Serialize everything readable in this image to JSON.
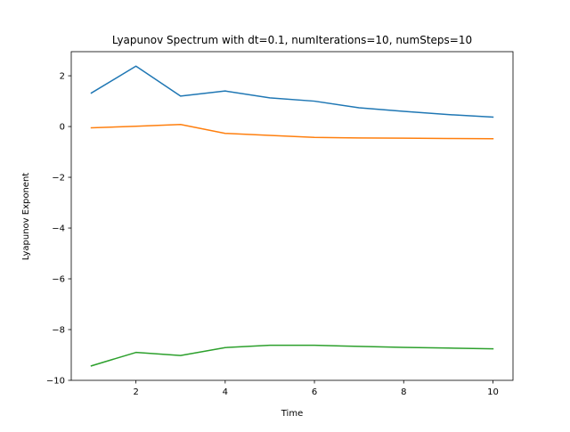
{
  "chart_data": {
    "type": "line",
    "title": "Lyapunov Spectrum with  dt=0.1, numIterations=10, numSteps=10",
    "xlabel": "Time",
    "ylabel": "Lyapunov Exponent",
    "xlim": [
      0.55,
      10.45
    ],
    "ylim": [
      -10,
      2.95
    ],
    "xticks": [
      2,
      4,
      6,
      8,
      10
    ],
    "yticks": [
      -10,
      -8,
      -6,
      -4,
      -2,
      0,
      2
    ],
    "xtick_labels": [
      "2",
      "4",
      "6",
      "8",
      "10"
    ],
    "ytick_labels": [
      "−10",
      "−8",
      "−6",
      "−4",
      "−2",
      "0",
      "2"
    ],
    "grid": false,
    "legend": "none",
    "x": [
      1,
      2,
      3,
      4,
      5,
      6,
      7,
      8,
      9,
      10
    ],
    "series": [
      {
        "color": "#1f77b4",
        "values": [
          1.32,
          2.38,
          1.2,
          1.4,
          1.13,
          1.0,
          0.74,
          0.6,
          0.47,
          0.37
        ]
      },
      {
        "color": "#ff7f0e",
        "values": [
          -0.05,
          0.01,
          0.08,
          -0.27,
          -0.35,
          -0.43,
          -0.45,
          -0.46,
          -0.47,
          -0.48
        ]
      },
      {
        "color": "#2ca02c",
        "values": [
          -9.43,
          -8.9,
          -9.02,
          -8.71,
          -8.62,
          -8.62,
          -8.66,
          -8.7,
          -8.73,
          -8.76
        ]
      }
    ]
  }
}
